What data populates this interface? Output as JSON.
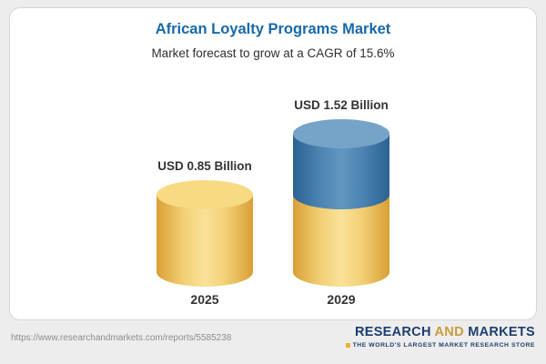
{
  "chart_data": {
    "type": "bar",
    "style": "3d-cylinder",
    "title": "African Loyalty Programs Market",
    "subtitle": "Market forecast to grow at a CAGR of 15.6%",
    "cagr_percent": 15.6,
    "unit": "USD Billion",
    "categories": [
      "2025",
      "2029"
    ],
    "values": [
      0.85,
      1.52
    ],
    "value_labels": [
      "USD 0.85 Billion",
      "USD 1.52 Billion"
    ],
    "series": [
      {
        "name": "gold-segment (2025 base)",
        "values": [
          0.85,
          0.85
        ]
      },
      {
        "name": "blue-segment (growth to 2029)",
        "values": [
          0,
          0.67
        ]
      }
    ],
    "legend": false,
    "gridlines": false,
    "axes_hidden": true,
    "colors": {
      "gold": "#EFC457",
      "gold_light": "#F7DA82",
      "blue": "#4C83B1",
      "blue_light": "#76A4C8",
      "title_blue": "#1769A8"
    }
  },
  "footer": {
    "url": "https://www.researchandmarkets.com/reports/5585238",
    "logo": {
      "word1": "RESEARCH",
      "word2": "AND",
      "word3": "MARKETS",
      "tagline": "THE WORLD'S LARGEST MARKET RESEARCH STORE"
    }
  }
}
